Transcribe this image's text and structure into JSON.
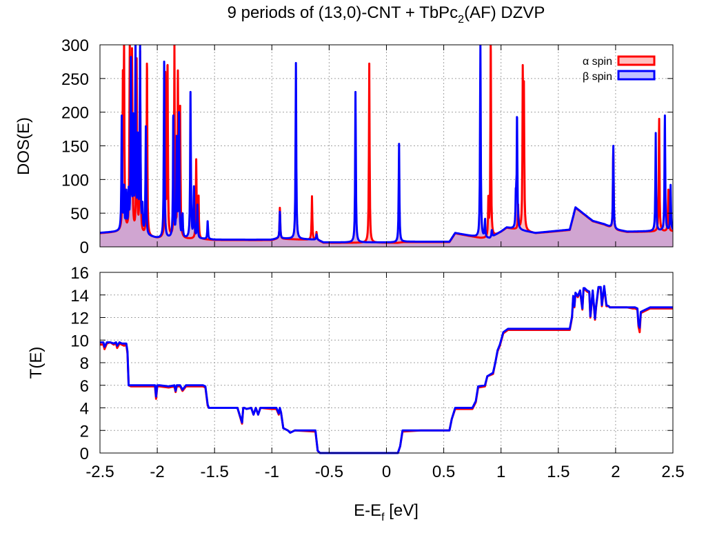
{
  "colors": {
    "alpha": "#ff0000",
    "beta": "#0000ff",
    "alpha_fill": "#ffc0c0",
    "beta_fill": "#c0c0ff",
    "overlap_fill": "#c8a0d4",
    "grid": "#a0a0a0"
  },
  "chart_data": [
    {
      "type": "line",
      "title_parts": {
        "main": "9 periods of (13,0)-CNT + TbPc",
        "sub": "2",
        "tail": "(AF) DZVP"
      },
      "ylabel": "DOS(E)",
      "xlim": [
        -2.5,
        2.5
      ],
      "ylim": [
        0,
        300
      ],
      "xticks": [
        -2.5,
        -2,
        -1.5,
        -1,
        -0.5,
        0,
        0.5,
        1,
        1.5,
        2,
        2.5
      ],
      "yticks": [
        0,
        50,
        100,
        150,
        200,
        250,
        300
      ],
      "ytick_labels": [
        "0",
        "50",
        "100",
        "150",
        "200",
        "250",
        "300"
      ],
      "grid": true,
      "filled": true,
      "legend_position": "top-right",
      "baseline": {
        "x": [
          -2.5,
          -2.3,
          -2.0,
          -1.6,
          -1.5,
          -1.0,
          -0.95,
          -0.6,
          -0.55,
          0.1,
          0.15,
          0.55,
          0.6,
          0.82,
          0.9,
          1.0,
          1.05,
          1.3,
          1.6,
          1.65,
          1.8,
          1.9,
          2.0,
          2.1,
          2.5
        ],
        "y": [
          20,
          22,
          12,
          11,
          10,
          10,
          12,
          10,
          6,
          6,
          7,
          7,
          20,
          13,
          12,
          22,
          28,
          20,
          25,
          58,
          38,
          33,
          25,
          22,
          23
        ]
      },
      "series": [
        {
          "name": "α spin",
          "peaks": [
            {
              "x": -2.3,
              "h": 230
            },
            {
              "x": -2.29,
              "h": 300
            },
            {
              "x": -2.24,
              "h": 300
            },
            {
              "x": -2.22,
              "h": 295
            },
            {
              "x": -2.18,
              "h": 280
            },
            {
              "x": -2.15,
              "h": 285
            },
            {
              "x": -2.09,
              "h": 272
            },
            {
              "x": -1.93,
              "h": 260
            },
            {
              "x": -1.91,
              "h": 270
            },
            {
              "x": -1.85,
              "h": 297
            },
            {
              "x": -1.82,
              "h": 262
            },
            {
              "x": -1.8,
              "h": 200
            },
            {
              "x": -1.66,
              "h": 130
            },
            {
              "x": -1.64,
              "h": 75
            },
            {
              "x": -0.93,
              "h": 58
            },
            {
              "x": -0.65,
              "h": 75
            },
            {
              "x": -0.61,
              "h": 22
            },
            {
              "x": -0.15,
              "h": 272
            },
            {
              "x": 0.89,
              "h": 70
            },
            {
              "x": 0.91,
              "h": 300
            },
            {
              "x": 1.15,
              "h": 60
            },
            {
              "x": 1.19,
              "h": 260
            },
            {
              "x": 1.2,
              "h": 220
            },
            {
              "x": 1.98,
              "h": 145
            },
            {
              "x": 2.38,
              "h": 190
            },
            {
              "x": 2.46,
              "h": 85
            }
          ]
        },
        {
          "name": "β spin",
          "peaks": [
            {
              "x": -2.31,
              "h": 195
            },
            {
              "x": -2.29,
              "h": 85
            },
            {
              "x": -2.27,
              "h": 85
            },
            {
              "x": -2.25,
              "h": 75
            },
            {
              "x": -2.23,
              "h": 282
            },
            {
              "x": -2.21,
              "h": 185
            },
            {
              "x": -2.19,
              "h": 300
            },
            {
              "x": -2.17,
              "h": 170
            },
            {
              "x": -2.15,
              "h": 298
            },
            {
              "x": -2.13,
              "h": 60
            },
            {
              "x": -2.1,
              "h": 175
            },
            {
              "x": -1.94,
              "h": 275
            },
            {
              "x": -1.86,
              "h": 195
            },
            {
              "x": -1.83,
              "h": 165
            },
            {
              "x": -1.81,
              "h": 200
            },
            {
              "x": -1.78,
              "h": 50
            },
            {
              "x": -1.71,
              "h": 230
            },
            {
              "x": -1.68,
              "h": 90
            },
            {
              "x": -1.65,
              "h": 60
            },
            {
              "x": -1.56,
              "h": 38
            },
            {
              "x": -0.93,
              "h": 52
            },
            {
              "x": -0.79,
              "h": 273
            },
            {
              "x": -0.61,
              "h": 18
            },
            {
              "x": -0.27,
              "h": 230
            },
            {
              "x": 0.11,
              "h": 153
            },
            {
              "x": 0.82,
              "h": 300
            },
            {
              "x": 0.86,
              "h": 40
            },
            {
              "x": 0.92,
              "h": 25
            },
            {
              "x": 1.13,
              "h": 80
            },
            {
              "x": 1.14,
              "h": 192
            },
            {
              "x": 1.98,
              "h": 150
            },
            {
              "x": 2.35,
              "h": 168
            },
            {
              "x": 2.43,
              "h": 195
            },
            {
              "x": 2.48,
              "h": 92
            }
          ]
        }
      ]
    },
    {
      "type": "line",
      "xlabel_parts": {
        "main": "E-E",
        "sub": "f",
        "tail": " [eV]"
      },
      "ylabel": "T(E)",
      "xlim": [
        -2.5,
        2.5
      ],
      "ylim": [
        0,
        16
      ],
      "xticks": [
        -2.5,
        -2,
        -1.5,
        -1,
        -0.5,
        0,
        0.5,
        1,
        1.5,
        2,
        2.5
      ],
      "xtick_labels": [
        "-2.5",
        "-2",
        "-1.5",
        "-1",
        "-0.5",
        "0",
        "0.5",
        "1",
        "1.5",
        "2",
        "2.5"
      ],
      "yticks": [
        0,
        2,
        4,
        6,
        8,
        10,
        12,
        14,
        16
      ],
      "ytick_labels": [
        "0",
        "2",
        "4",
        "6",
        "8",
        "10",
        "12",
        "14",
        "16"
      ],
      "grid": true,
      "series": [
        {
          "name": "α spin",
          "x": [
            -2.5,
            -2.47,
            -2.46,
            -2.44,
            -2.41,
            -2.38,
            -2.36,
            -2.35,
            -2.33,
            -2.31,
            -2.29,
            -2.27,
            -2.26,
            -2.25,
            -2.23,
            -2.2,
            -2.1,
            -2.02,
            -2.01,
            -2.0,
            -1.98,
            -1.9,
            -1.85,
            -1.84,
            -1.83,
            -1.8,
            -1.78,
            -1.75,
            -1.6,
            -1.58,
            -1.56,
            -1.55,
            -1.3,
            -1.26,
            -1.25,
            -1.24,
            -1.22,
            -1.18,
            -1.16,
            -1.14,
            -1.12,
            -1.1,
            -1.0,
            -0.96,
            -0.94,
            -0.93,
            -0.92,
            -0.9,
            -0.86,
            -0.84,
            -0.8,
            -0.62,
            -0.6,
            -0.58,
            -0.5,
            0.1,
            0.12,
            0.14,
            0.3,
            0.55,
            0.57,
            0.6,
            0.75,
            0.78,
            0.8,
            0.86,
            0.88,
            0.93,
            0.95,
            0.97,
            0.99,
            1.02,
            1.06,
            1.3,
            1.6,
            1.62,
            1.63,
            1.64,
            1.65,
            1.67,
            1.69,
            1.71,
            1.72,
            1.73,
            1.75,
            1.77,
            1.78,
            1.8,
            1.82,
            1.83,
            1.85,
            1.87,
            1.88,
            1.9,
            1.92,
            1.94,
            1.95,
            2.1,
            2.15,
            2.17,
            2.19,
            2.2,
            2.21,
            2.22,
            2.24,
            2.3,
            2.4,
            2.5
          ],
          "y": [
            9.6,
            9.6,
            9.2,
            9.7,
            9.8,
            9.6,
            9.7,
            9.3,
            9.7,
            9.6,
            9.5,
            9.6,
            8.8,
            6.0,
            5.9,
            5.9,
            5.9,
            5.9,
            4.8,
            5.9,
            5.9,
            5.8,
            5.9,
            5.4,
            5.9,
            5.9,
            5.5,
            5.9,
            5.9,
            5.8,
            4.2,
            4.0,
            4.0,
            2.6,
            4.0,
            4.0,
            3.9,
            4.0,
            3.4,
            4.0,
            3.4,
            4.0,
            3.9,
            3.9,
            3.4,
            3.9,
            3.6,
            2.2,
            2.0,
            1.8,
            2.0,
            1.9,
            0.2,
            0.0,
            0.0,
            0.0,
            0.6,
            1.9,
            2.0,
            2.0,
            3.0,
            3.9,
            3.9,
            4.5,
            5.8,
            5.9,
            6.8,
            7.0,
            8.0,
            9.0,
            9.5,
            10.6,
            10.9,
            10.9,
            10.9,
            12.0,
            13.8,
            12.9,
            14.1,
            13.8,
            14.3,
            12.7,
            14.5,
            14.5,
            14.3,
            14.2,
            12.0,
            14.3,
            11.8,
            12.9,
            14.6,
            14.6,
            13.0,
            14.7,
            13.0,
            13.0,
            12.9,
            12.9,
            12.8,
            12.8,
            12.7,
            11.2,
            10.7,
            12.4,
            12.5,
            12.8,
            12.8,
            12.8
          ]
        },
        {
          "name": "β spin",
          "x": [
            -2.5,
            -2.47,
            -2.46,
            -2.44,
            -2.41,
            -2.38,
            -2.36,
            -2.35,
            -2.33,
            -2.31,
            -2.29,
            -2.27,
            -2.26,
            -2.25,
            -2.23,
            -2.2,
            -2.1,
            -2.02,
            -2.01,
            -2.0,
            -1.98,
            -1.9,
            -1.85,
            -1.84,
            -1.83,
            -1.8,
            -1.78,
            -1.75,
            -1.6,
            -1.58,
            -1.56,
            -1.55,
            -1.3,
            -1.26,
            -1.25,
            -1.24,
            -1.22,
            -1.18,
            -1.16,
            -1.14,
            -1.12,
            -1.1,
            -1.0,
            -0.96,
            -0.94,
            -0.93,
            -0.92,
            -0.9,
            -0.86,
            -0.84,
            -0.8,
            -0.62,
            -0.6,
            -0.58,
            -0.5,
            0.1,
            0.12,
            0.14,
            0.3,
            0.55,
            0.57,
            0.6,
            0.75,
            0.78,
            0.8,
            0.86,
            0.88,
            0.93,
            0.95,
            0.97,
            0.99,
            1.02,
            1.06,
            1.3,
            1.6,
            1.62,
            1.63,
            1.64,
            1.65,
            1.67,
            1.69,
            1.71,
            1.72,
            1.73,
            1.75,
            1.77,
            1.78,
            1.8,
            1.82,
            1.83,
            1.85,
            1.87,
            1.88,
            1.9,
            1.92,
            1.94,
            1.95,
            2.1,
            2.15,
            2.17,
            2.19,
            2.2,
            2.21,
            2.22,
            2.24,
            2.3,
            2.4,
            2.5
          ],
          "y": [
            9.8,
            9.8,
            9.4,
            9.8,
            9.8,
            9.7,
            9.8,
            9.5,
            9.8,
            9.7,
            9.7,
            9.7,
            9.0,
            6.0,
            6.0,
            6.0,
            6.0,
            6.0,
            5.0,
            6.0,
            6.0,
            5.9,
            6.0,
            5.5,
            6.0,
            6.0,
            5.6,
            6.0,
            6.0,
            5.9,
            4.3,
            4.0,
            4.0,
            2.7,
            4.0,
            4.0,
            3.9,
            4.0,
            3.4,
            4.0,
            3.4,
            4.0,
            4.0,
            4.0,
            3.5,
            4.0,
            3.6,
            2.2,
            2.0,
            1.8,
            2.0,
            2.0,
            0.2,
            0.0,
            0.0,
            0.0,
            0.6,
            2.0,
            2.0,
            2.0,
            3.0,
            4.0,
            4.0,
            4.6,
            5.9,
            6.0,
            6.8,
            7.1,
            8.0,
            9.1,
            9.6,
            10.7,
            11.0,
            11.0,
            11.0,
            12.1,
            13.9,
            13.0,
            14.2,
            13.9,
            14.4,
            12.8,
            14.6,
            14.6,
            14.4,
            14.3,
            12.1,
            14.4,
            11.9,
            13.0,
            14.7,
            14.7,
            13.1,
            14.8,
            13.1,
            13.0,
            12.9,
            12.9,
            12.9,
            12.9,
            12.8,
            11.4,
            11.1,
            12.5,
            12.6,
            12.9,
            12.9,
            12.9
          ]
        }
      ]
    }
  ]
}
